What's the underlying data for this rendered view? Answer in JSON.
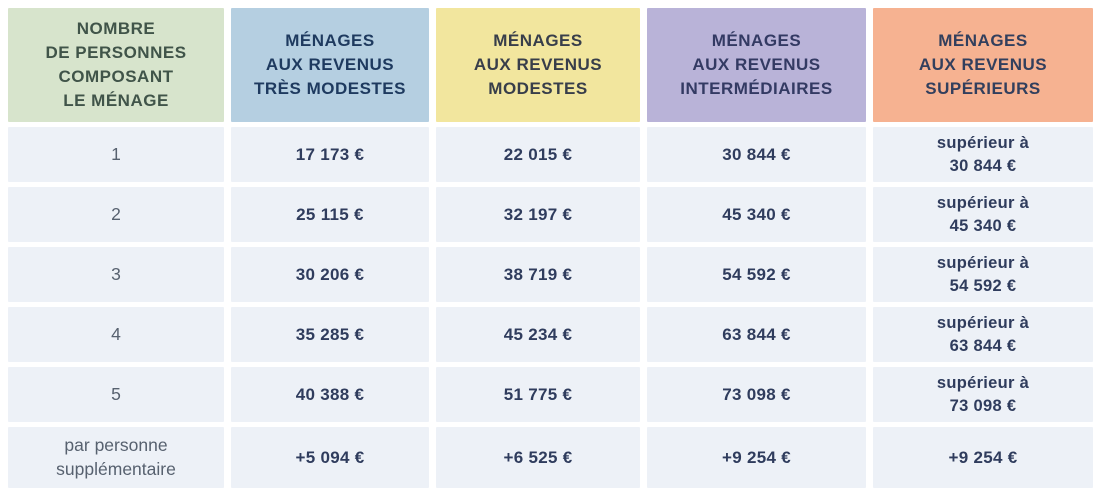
{
  "colors": {
    "page_background": "#ffffff",
    "cell_background": "#edf1f7",
    "header_household_bg": "#d7e4cc",
    "header_household_text": "#405449",
    "header_tres_modestes_bg": "#b5cfe1",
    "header_tres_modestes_text": "#1e3a5f",
    "header_modestes_bg": "#f2e69e",
    "header_modestes_text": "#383e4a",
    "header_intermediaires_bg": "#b9b3d8",
    "header_intermediaires_text": "#333a63",
    "header_superieurs_bg": "#f6b291",
    "header_superieurs_text": "#323f5d",
    "value_text": "#2f3c5d",
    "row_label_text": "#57616f"
  },
  "table": {
    "header": {
      "household": "NOMBRE\nDE PERSONNES\nCOMPOSANT\nLE MÉNAGE",
      "tres_modestes": "MÉNAGES\nAUX REVENUS\nTRÈS MODESTES",
      "modestes": "MÉNAGES\nAUX REVENUS\nMODESTES",
      "intermediaires": "MÉNAGES\nAUX REVENUS\nINTERMÉDIAIRES",
      "superieurs": "MÉNAGES\nAUX REVENUS\nSUPÉRIEURS"
    },
    "rows": [
      {
        "label": "1",
        "tres_modestes": "17 173 €",
        "modestes": "22 015 €",
        "intermediaires": "30 844 €",
        "superieurs": "supérieur à\n30 844 €"
      },
      {
        "label": "2",
        "tres_modestes": "25 115 €",
        "modestes": "32 197 €",
        "intermediaires": "45 340 €",
        "superieurs": "supérieur à\n45 340 €"
      },
      {
        "label": "3",
        "tres_modestes": "30 206 €",
        "modestes": "38 719 €",
        "intermediaires": "54 592 €",
        "superieurs": "supérieur à\n54 592 €"
      },
      {
        "label": "4",
        "tres_modestes": "35 285 €",
        "modestes": "45 234 €",
        "intermediaires": "63 844 €",
        "superieurs": "supérieur à\n63 844 €"
      },
      {
        "label": "5",
        "tres_modestes": "40 388 €",
        "modestes": "51 775 €",
        "intermediaires": "73 098 €",
        "superieurs": "supérieur à\n73 098 €"
      },
      {
        "label": "par personne\nsupplémentaire",
        "tres_modestes": "+5 094 €",
        "modestes": "+6 525 €",
        "intermediaires": "+9 254 €",
        "superieurs": "+9 254 €"
      }
    ]
  },
  "chart_data": {
    "type": "table",
    "title": "",
    "columns": [
      "NOMBRE DE PERSONNES COMPOSANT LE MÉNAGE",
      "MÉNAGES AUX REVENUS TRÈS MODESTES",
      "MÉNAGES AUX REVENUS MODESTES",
      "MÉNAGES AUX REVENUS INTERMÉDIAIRES",
      "MÉNAGES AUX REVENUS SUPÉRIEURS"
    ],
    "rows": [
      [
        "1",
        "17 173 €",
        "22 015 €",
        "30 844 €",
        "supérieur à 30 844 €"
      ],
      [
        "2",
        "25 115 €",
        "32 197 €",
        "45 340 €",
        "supérieur à 45 340 €"
      ],
      [
        "3",
        "30 206 €",
        "38 719 €",
        "54 592 €",
        "supérieur à 54 592 €"
      ],
      [
        "4",
        "35 285 €",
        "45 234 €",
        "63 844 €",
        "supérieur à 63 844 €"
      ],
      [
        "5",
        "40 388 €",
        "51 775 €",
        "73 098 €",
        "supérieur à 73 098 €"
      ],
      [
        "par personne supplémentaire",
        "+5 094 €",
        "+6 525 €",
        "+9 254 €",
        "+9 254 €"
      ]
    ]
  }
}
